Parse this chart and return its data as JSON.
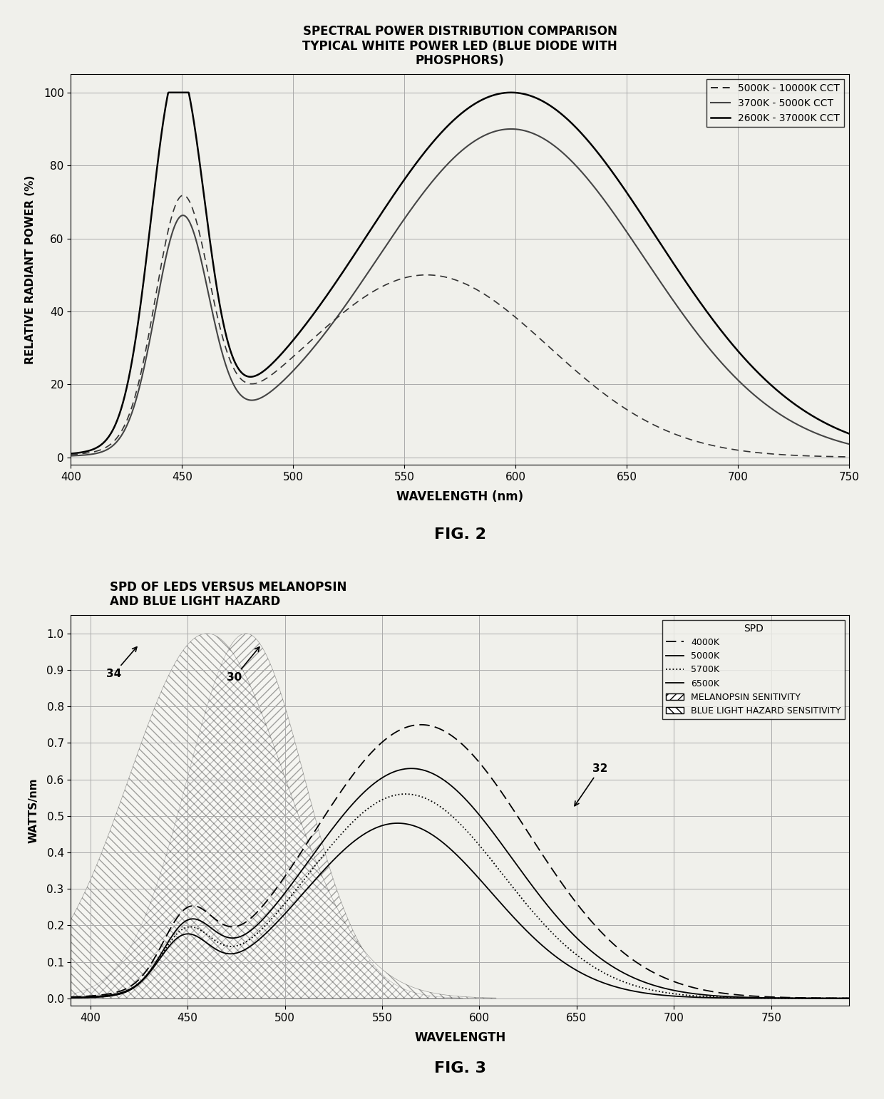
{
  "fig2": {
    "title": "SPECTRAL POWER DISTRIBUTION COMPARISON\nTYPICAL WHITE POWER LED (BLUE DIODE WITH\nPHOSPHORS)",
    "xlabel": "WAVELENGTH (nm)",
    "ylabel": "RELATIVE RADIANT POWER (%)",
    "xlim": [
      400,
      750
    ],
    "ylim": [
      -2,
      105
    ],
    "yticks": [
      0,
      20,
      40,
      60,
      80,
      100
    ],
    "xticks": [
      400,
      450,
      500,
      550,
      600,
      650,
      700,
      750
    ],
    "legend_labels": [
      "5000K - 10000K CCT",
      "3700K - 5000K CCT",
      "2600K - 37000K CCT"
    ],
    "legend_styles": [
      "dashed",
      "solid_dark",
      "solid_medium"
    ]
  },
  "fig3": {
    "title": "SPD OF LEDS VERSUS MELANOPSIN\nAND BLUE LIGHT HAZARD",
    "xlabel": "WAVELENGTH",
    "ylabel": "WATTS/nm",
    "xlim": [
      390,
      790
    ],
    "ylim": [
      -0.02,
      1.05
    ],
    "yticks": [
      0.0,
      0.1,
      0.2,
      0.3,
      0.4,
      0.5,
      0.6,
      0.7,
      0.8,
      0.9,
      1.0
    ],
    "xticks": [
      400,
      450,
      500,
      550,
      600,
      650,
      700,
      750
    ],
    "legend_labels": [
      "4000K",
      "5000K",
      "5700K",
      "6500K",
      "MELANOPSIN SENITIVITY",
      "BLUE LIGHT HAZARD SENSITIVITY"
    ],
    "spd_header": "SPD",
    "annotation_34": "34",
    "annotation_30": "30",
    "annotation_32": "32"
  },
  "background_color": "#f5f5f0",
  "line_color": "#000000",
  "grid_color": "#aaaaaa"
}
